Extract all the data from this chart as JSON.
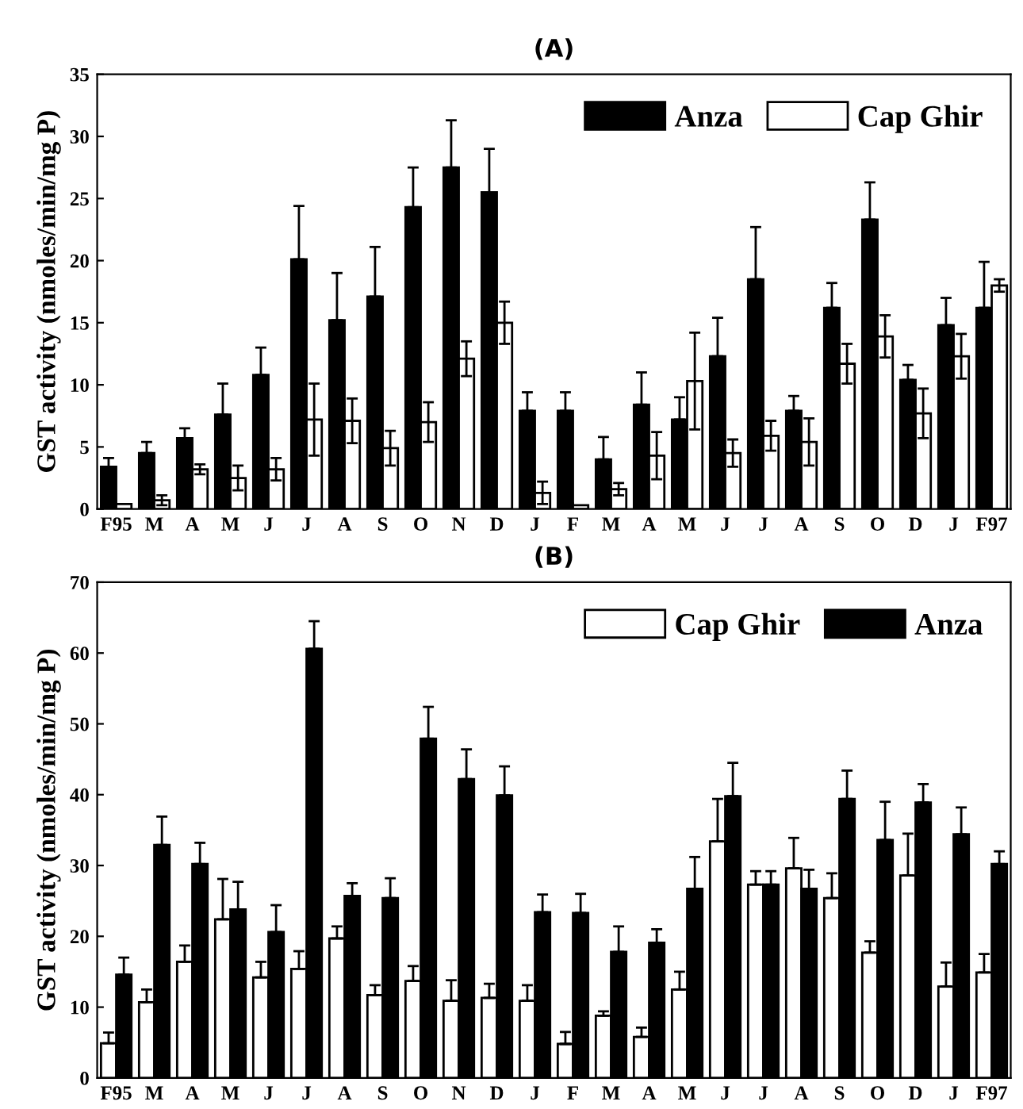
{
  "chart_data": [
    {
      "type": "bar",
      "title": "(A)",
      "ylabel": "GST activity (nmoles/min/mg P)",
      "categories": [
        "F95",
        "M",
        "A",
        "M",
        "J",
        "J",
        "A",
        "S",
        "O",
        "N",
        "D",
        "J",
        "F",
        "M",
        "A",
        "M",
        "J",
        "J",
        "A",
        "S",
        "O",
        "D",
        "J",
        "F97"
      ],
      "series": [
        {
          "name": "Anza",
          "color": "#000000",
          "values": [
            3.4,
            4.5,
            5.7,
            7.6,
            10.8,
            20.1,
            15.2,
            17.1,
            24.3,
            27.5,
            25.5,
            7.9,
            7.9,
            4.0,
            8.4,
            7.2,
            12.3,
            18.5,
            7.9,
            16.2,
            23.3,
            10.4,
            14.8,
            16.2
          ],
          "errors": [
            [
              3.4,
              4.1
            ],
            [
              4.5,
              5.4
            ],
            [
              5.7,
              6.5
            ],
            [
              7.6,
              10.1
            ],
            [
              10.8,
              13.0
            ],
            [
              20.1,
              24.4
            ],
            [
              15.2,
              19.0
            ],
            [
              17.1,
              21.1
            ],
            [
              24.3,
              27.5
            ],
            [
              27.5,
              31.3
            ],
            [
              25.5,
              29.0
            ],
            [
              7.9,
              9.4
            ],
            [
              7.9,
              9.4
            ],
            [
              4.0,
              5.8
            ],
            [
              8.4,
              11.0
            ],
            [
              7.2,
              9.0
            ],
            [
              12.3,
              15.4
            ],
            [
              18.5,
              22.7
            ],
            [
              7.9,
              9.1
            ],
            [
              16.2,
              18.2
            ],
            [
              23.3,
              26.3
            ],
            [
              10.4,
              11.6
            ],
            [
              14.8,
              17.0
            ],
            [
              16.2,
              19.9
            ]
          ]
        },
        {
          "name": "Cap Ghir",
          "color": "#ffffff",
          "values": [
            0.4,
            0.7,
            3.2,
            2.5,
            3.2,
            7.2,
            7.1,
            4.9,
            7.0,
            12.1,
            15.0,
            1.3,
            0.3,
            1.6,
            4.3,
            10.3,
            4.5,
            5.9,
            5.4,
            11.7,
            13.9,
            7.7,
            12.3,
            18.0
          ],
          "errors": [
            null,
            0.4,
            0.4,
            1.0,
            0.9,
            2.9,
            1.8,
            1.4,
            1.6,
            1.4,
            1.7,
            0.9,
            null,
            0.5,
            1.9,
            3.9,
            1.1,
            1.2,
            1.9,
            1.6,
            1.7,
            2.0,
            1.8,
            0.5
          ]
        }
      ],
      "ylim": [
        0,
        35
      ],
      "yticks": [
        0,
        5,
        10,
        15,
        20,
        25,
        30,
        35
      ],
      "legend": "top right"
    },
    {
      "type": "bar",
      "title": "(B)",
      "ylabel": "GST activity (nmoles/min/mg P)",
      "categories": [
        "F95",
        "M",
        "A",
        "M",
        "J",
        "J",
        "A",
        "S",
        "O",
        "N",
        "D",
        "J",
        "F",
        "M",
        "A",
        "M",
        "J",
        "J",
        "A",
        "S",
        "O",
        "D",
        "J",
        "F97"
      ],
      "series": [
        {
          "name": "Cap Ghir",
          "color": "#ffffff",
          "values": [
            4.9,
            10.7,
            16.4,
            22.4,
            14.2,
            15.4,
            19.7,
            11.7,
            13.7,
            10.9,
            11.3,
            10.9,
            4.8,
            8.8,
            5.8,
            12.5,
            33.4,
            27.3,
            29.6,
            25.4,
            17.7,
            28.6,
            12.9,
            14.9
          ],
          "errors": [
            [
              4.9,
              6.4
            ],
            [
              10.7,
              12.5
            ],
            [
              16.4,
              18.7
            ],
            [
              22.4,
              28.1
            ],
            [
              14.2,
              16.4
            ],
            [
              15.4,
              17.9
            ],
            [
              19.7,
              21.4
            ],
            [
              11.7,
              13.1
            ],
            [
              13.7,
              15.8
            ],
            [
              10.9,
              13.8
            ],
            [
              11.3,
              13.3
            ],
            [
              10.9,
              13.1
            ],
            [
              4.8,
              6.5
            ],
            [
              8.8,
              9.4
            ],
            [
              5.8,
              7.1
            ],
            [
              12.5,
              15.0
            ],
            [
              33.4,
              39.4
            ],
            [
              27.3,
              29.2
            ],
            [
              29.6,
              33.9
            ],
            [
              25.4,
              28.9
            ],
            [
              17.7,
              19.3
            ],
            [
              28.6,
              34.5
            ],
            [
              12.9,
              16.3
            ],
            [
              14.9,
              17.5
            ]
          ]
        },
        {
          "name": "Anza",
          "color": "#000000",
          "values": [
            14.6,
            32.9,
            30.2,
            23.8,
            20.6,
            60.6,
            25.7,
            25.4,
            47.9,
            42.2,
            39.9,
            23.4,
            23.3,
            17.8,
            19.1,
            26.7,
            39.8,
            27.3,
            26.7,
            39.4,
            33.6,
            38.9,
            34.4,
            30.2
          ],
          "errors": [
            [
              14.6,
              17.0
            ],
            [
              32.9,
              36.9
            ],
            [
              30.2,
              33.2
            ],
            [
              23.8,
              27.7
            ],
            [
              20.6,
              24.4
            ],
            [
              60.6,
              64.5
            ],
            [
              25.7,
              27.5
            ],
            [
              25.4,
              28.2
            ],
            [
              47.9,
              52.4
            ],
            [
              42.2,
              46.4
            ],
            [
              39.9,
              44.0
            ],
            [
              23.4,
              25.9
            ],
            [
              23.3,
              26.0
            ],
            [
              17.8,
              21.4
            ],
            [
              19.1,
              21.0
            ],
            [
              26.7,
              31.2
            ],
            [
              39.8,
              44.5
            ],
            [
              27.3,
              29.2
            ],
            [
              26.7,
              29.4
            ],
            [
              39.4,
              43.4
            ],
            [
              33.6,
              39.0
            ],
            [
              38.9,
              41.5
            ],
            [
              34.4,
              38.2
            ],
            [
              30.2,
              32.0
            ]
          ]
        }
      ],
      "ylim": [
        0,
        70
      ],
      "yticks": [
        0,
        10,
        20,
        30,
        40,
        50,
        60,
        70
      ],
      "legend": "top right"
    }
  ]
}
